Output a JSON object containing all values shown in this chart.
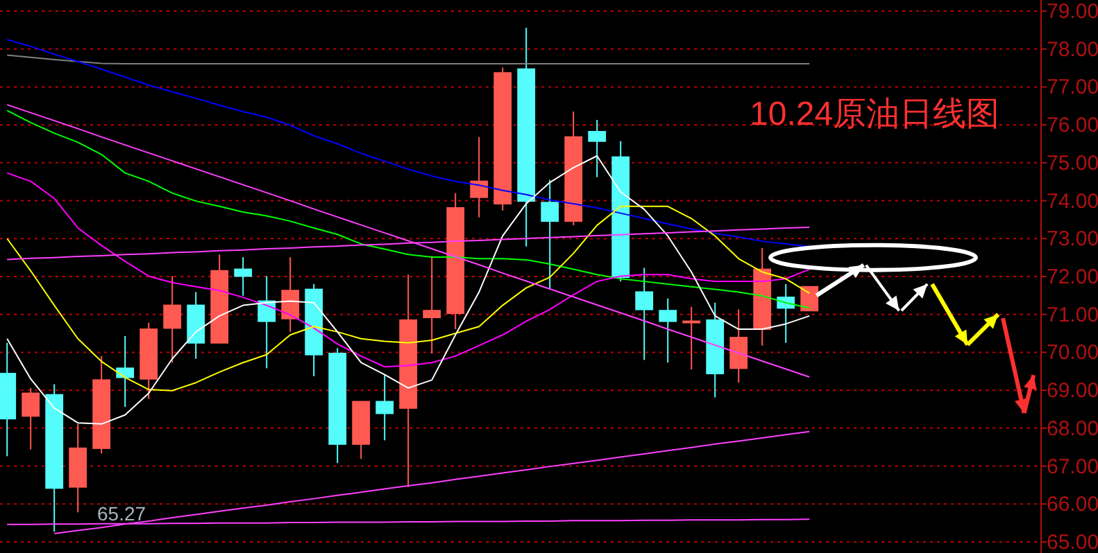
{
  "chart_data": {
    "type": "candlestick",
    "title": "10.24原油日线图",
    "categories": [
      null,
      null,
      null,
      null,
      null,
      null,
      null,
      null,
      null,
      null,
      null,
      null,
      null,
      null,
      null,
      null,
      null,
      null,
      null,
      null,
      null,
      null,
      null,
      null,
      null,
      null,
      null,
      null,
      null,
      null,
      null,
      null,
      null,
      null,
      null
    ],
    "ohlc": [
      [
        69.44,
        70.25,
        67.26,
        68.25
      ],
      [
        68.32,
        69.06,
        67.44,
        68.92
      ],
      [
        68.88,
        69.16,
        65.27,
        66.42
      ],
      [
        66.45,
        68.11,
        65.78,
        67.47
      ],
      [
        67.47,
        69.9,
        67.33,
        69.27
      ],
      [
        69.58,
        70.43,
        68.56,
        69.34
      ],
      [
        69.3,
        70.78,
        68.77,
        70.61
      ],
      [
        70.64,
        72.01,
        69.73,
        71.24
      ],
      [
        71.24,
        71.59,
        69.83,
        70.25
      ],
      [
        70.25,
        72.58,
        70.25,
        72.15
      ],
      [
        72.19,
        72.51,
        71.49,
        72.01
      ],
      [
        71.35,
        72.01,
        69.58,
        70.82
      ],
      [
        70.89,
        72.51,
        70.54,
        71.63
      ],
      [
        71.66,
        71.8,
        69.37,
        69.94
      ],
      [
        69.97,
        70.11,
        67.08,
        67.58
      ],
      [
        67.58,
        68.7,
        67.19,
        68.7
      ],
      [
        68.7,
        69.41,
        67.68,
        68.39
      ],
      [
        68.53,
        72.05,
        66.45,
        70.85
      ],
      [
        70.92,
        72.54,
        69.97,
        71.1
      ],
      [
        71.03,
        74.2,
        70.61,
        73.81
      ],
      [
        74.09,
        75.68,
        73.56,
        74.51
      ],
      [
        73.92,
        77.51,
        73.74,
        77.37
      ],
      [
        77.47,
        78.56,
        72.79,
        73.99
      ],
      [
        73.95,
        74.55,
        71.66,
        73.46
      ],
      [
        73.46,
        76.35,
        73.35,
        75.68
      ],
      [
        75.82,
        76.13,
        74.62,
        75.57
      ],
      [
        75.15,
        75.57,
        71.87,
        71.98
      ],
      [
        71.59,
        72.23,
        69.8,
        71.13
      ],
      [
        71.1,
        71.42,
        69.73,
        70.82
      ],
      [
        70.82,
        71.2,
        69.55,
        70.82
      ],
      [
        70.85,
        71.31,
        68.81,
        69.44
      ],
      [
        69.58,
        71.13,
        69.2,
        70.39
      ],
      [
        70.61,
        72.75,
        70.18,
        72.19
      ],
      [
        71.45,
        71.8,
        70.25,
        71.17
      ],
      [
        71.1,
        71.73,
        71.1,
        71.73
      ]
    ],
    "colors": [
      "#54fcfc",
      "#ff5a52",
      "#54fcfc",
      "#ff5a52",
      "#ff5a52",
      "#54fcfc",
      "#ff5a52",
      "#ff5a52",
      "#54fcfc",
      "#ff5a52",
      "#54fcfc",
      "#54fcfc",
      "#ff5a52",
      "#54fcfc",
      "#54fcfc",
      "#ff5a52",
      "#54fcfc",
      "#ff5a52",
      "#ff5a52",
      "#ff5a52",
      "#ff5a52",
      "#ff5a52",
      "#54fcfc",
      "#54fcfc",
      "#ff5a52",
      "#54fcfc",
      "#54fcfc",
      "#54fcfc",
      "#54fcfc",
      "#ff5a52",
      "#54fcfc",
      "#ff5a52",
      "#ff5a52",
      "#54fcfc",
      "#ff5a52"
    ],
    "series": [
      {
        "type": "line",
        "color": "#808080",
        "values": [
          77.84,
          77.78,
          77.72,
          77.67,
          77.62,
          77.61,
          77.61,
          77.61,
          77.61,
          77.61,
          77.61,
          77.61,
          77.61,
          77.61,
          77.61,
          77.61,
          77.61,
          77.61,
          77.61,
          77.61,
          77.61,
          77.61,
          77.61,
          77.61,
          77.61,
          77.61,
          77.61,
          77.61,
          77.61,
          77.61,
          77.61,
          77.61,
          77.61,
          77.61,
          77.61
        ]
      },
      {
        "type": "line",
        "color": "#0000ff",
        "values": [
          78.25,
          78.07,
          77.86,
          77.67,
          77.47,
          77.26,
          77.05,
          76.87,
          76.7,
          76.52,
          76.35,
          76.2,
          75.99,
          75.71,
          75.5,
          75.25,
          75.04,
          74.83,
          74.65,
          74.51,
          74.41,
          74.27,
          74.16,
          74.02,
          73.92,
          73.81,
          73.67,
          73.53,
          73.39,
          73.25,
          73.14,
          73.04,
          72.93,
          72.86,
          72.79
        ]
      },
      {
        "type": "line",
        "color": "#00ff00",
        "values": [
          76.38,
          76.06,
          75.78,
          75.54,
          75.22,
          74.73,
          74.51,
          74.2,
          73.99,
          73.85,
          73.7,
          73.6,
          73.46,
          73.28,
          73.11,
          72.86,
          72.72,
          72.58,
          72.51,
          72.51,
          72.47,
          72.47,
          72.44,
          72.33,
          72.19,
          72.05,
          71.94,
          71.87,
          71.8,
          71.73,
          71.66,
          71.59,
          71.49,
          71.31,
          71.17
        ]
      },
      {
        "type": "line",
        "color": "#ff00ff",
        "values": [
          74.73,
          74.51,
          74.06,
          73.28,
          72.82,
          72.4,
          72.01,
          71.84,
          71.73,
          71.63,
          71.45,
          71.24,
          70.99,
          70.64,
          70.22,
          69.9,
          69.62,
          69.65,
          69.73,
          69.9,
          70.18,
          70.46,
          70.82,
          71.13,
          71.52,
          71.87,
          72.01,
          72.05,
          72.05,
          71.94,
          71.87,
          71.87,
          71.87,
          71.94,
          72.19
        ]
      },
      {
        "type": "line",
        "color": "#ffff00",
        "values": [
          73.0,
          72.15,
          71.24,
          70.36,
          69.76,
          69.34,
          69.02,
          68.99,
          69.2,
          69.48,
          69.73,
          69.94,
          70.46,
          70.68,
          70.54,
          70.36,
          70.29,
          70.25,
          70.32,
          70.5,
          70.68,
          71.24,
          71.7,
          71.98,
          72.61,
          73.35,
          73.85,
          73.85,
          73.85,
          73.53,
          73.07,
          72.47,
          72.12,
          71.94,
          71.56
        ]
      },
      {
        "type": "line",
        "color": "#ffffff",
        "values": [
          70.36,
          69.3,
          68.53,
          68.14,
          68.11,
          68.35,
          68.92,
          69.83,
          70.54,
          70.96,
          71.24,
          71.31,
          71.35,
          71.31,
          70.54,
          69.73,
          69.41,
          69.06,
          69.27,
          70.46,
          71.59,
          73.07,
          73.92,
          74.48,
          74.87,
          75.18,
          74.23,
          73.77,
          73.07,
          72.12,
          70.96,
          70.61,
          70.61,
          70.75,
          70.96
        ]
      },
      {
        "type": "line",
        "color": "#ff40ff",
        "values": [
          76.53,
          76.32,
          76.11,
          75.9,
          75.68,
          75.47,
          75.26,
          75.05,
          74.84,
          74.63,
          74.42,
          74.21,
          74.0,
          73.78,
          73.57,
          73.36,
          73.15,
          72.94,
          72.73,
          72.52,
          72.31,
          72.09,
          71.88,
          71.67,
          71.46,
          71.25,
          71.04,
          70.83,
          70.61,
          70.4,
          70.19,
          69.98,
          69.77,
          69.56,
          69.35
        ]
      },
      {
        "type": "line",
        "color": "#ff40ff",
        "values": [
          null,
          null,
          65.22,
          65.3,
          65.38,
          65.47,
          65.55,
          65.64,
          65.72,
          65.81,
          65.89,
          65.97,
          66.06,
          66.14,
          66.23,
          66.31,
          66.4,
          66.48,
          66.56,
          66.65,
          66.73,
          66.82,
          66.9,
          66.99,
          67.07,
          67.15,
          67.24,
          67.32,
          67.41,
          67.49,
          67.58,
          67.66,
          67.74,
          67.83,
          67.91
        ]
      },
      {
        "type": "line",
        "color": "#ff40ff",
        "values": [
          72.45,
          72.48,
          72.5,
          72.53,
          72.55,
          72.58,
          72.6,
          72.63,
          72.65,
          72.68,
          72.7,
          72.73,
          72.75,
          72.78,
          72.8,
          72.83,
          72.85,
          72.88,
          72.9,
          72.93,
          72.95,
          72.98,
          73.0,
          73.03,
          73.05,
          73.08,
          73.1,
          73.13,
          73.15,
          73.18,
          73.2,
          73.23,
          73.25,
          73.28,
          73.3
        ]
      },
      {
        "type": "line",
        "color": "#ff40ff",
        "values": [
          65.46,
          65.46,
          65.47,
          65.47,
          65.48,
          65.48,
          65.48,
          65.49,
          65.49,
          65.5,
          65.5,
          65.5,
          65.51,
          65.51,
          65.52,
          65.52,
          65.52,
          65.53,
          65.53,
          65.54,
          65.54,
          65.54,
          65.55,
          65.55,
          65.56,
          65.56,
          65.56,
          65.57,
          65.57,
          65.58,
          65.58,
          65.58,
          65.59,
          65.59,
          65.6
        ]
      }
    ],
    "annotations": [
      {
        "text": "65.27",
        "y": 65.27
      }
    ],
    "ylim": [
      65,
      79
    ],
    "yticks": [
      {
        "value": 65,
        "label": "65.00"
      },
      {
        "value": 66,
        "label": "66.00"
      },
      {
        "value": 67,
        "label": "67.00"
      },
      {
        "value": 68,
        "label": "68.00"
      },
      {
        "value": 69,
        "label": "69.00"
      },
      {
        "value": 70,
        "label": "70.00"
      },
      {
        "value": 71,
        "label": "71.00"
      },
      {
        "value": 72,
        "label": "72.00"
      },
      {
        "value": 73,
        "label": "73.00"
      },
      {
        "value": 74,
        "label": "74.00"
      },
      {
        "value": 75,
        "label": "75.00"
      },
      {
        "value": 76,
        "label": "76.00"
      },
      {
        "value": 77,
        "label": "77.00"
      },
      {
        "value": 78,
        "label": "78.00"
      },
      {
        "value": 79,
        "label": "79.00"
      }
    ],
    "tick_labels": "y",
    "grid": "y"
  }
}
